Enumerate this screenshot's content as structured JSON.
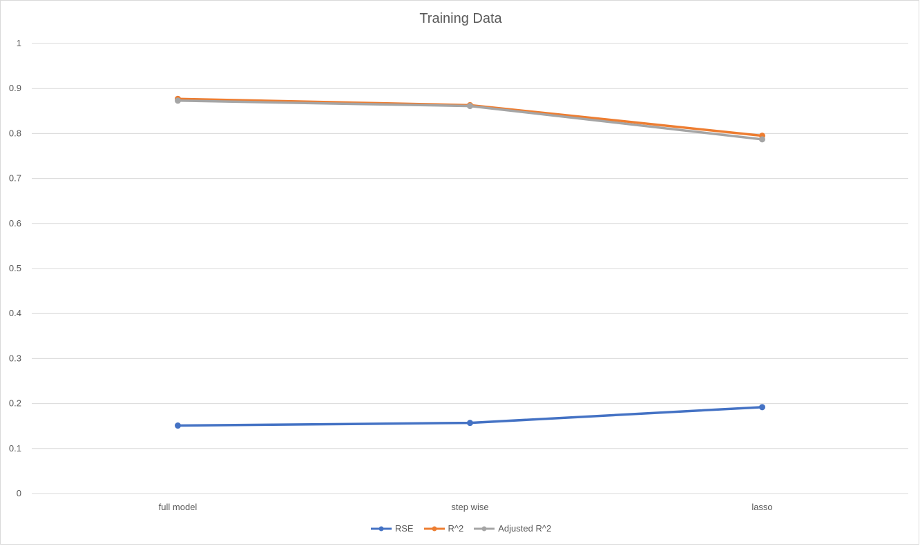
{
  "chart_data": {
    "type": "line",
    "title": "Training Data",
    "categories": [
      "full model",
      "step wise",
      "lasso"
    ],
    "ylim": [
      0,
      1
    ],
    "yticks": [
      "0",
      "0.1",
      "0.2",
      "0.3",
      "0.4",
      "0.5",
      "0.6",
      "0.7",
      "0.8",
      "0.9",
      "1"
    ],
    "grid": true,
    "legend_position": "bottom",
    "series": [
      {
        "name": "RSE",
        "color": "#4472C4",
        "values": [
          0.151,
          0.157,
          0.192
        ]
      },
      {
        "name": "R^2",
        "color": "#ED7D31",
        "values": [
          0.877,
          0.863,
          0.795
        ]
      },
      {
        "name": "Adjusted R^2",
        "color": "#A5A5A5",
        "values": [
          0.873,
          0.861,
          0.787
        ]
      }
    ]
  }
}
